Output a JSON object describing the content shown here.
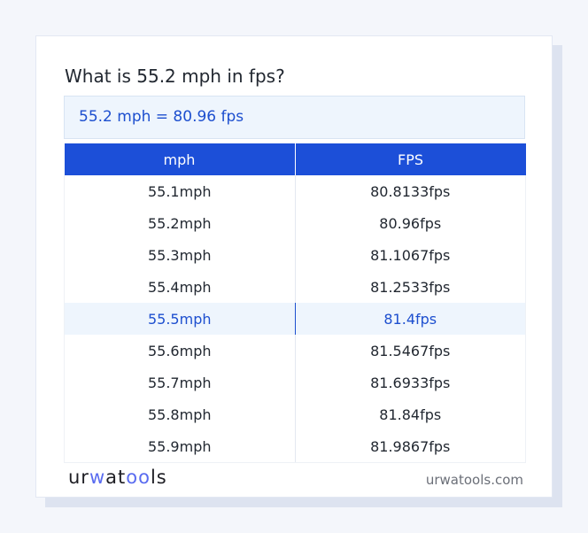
{
  "title": "What is 55.2 mph in fps?",
  "result": "55.2 mph = 80.96 fps",
  "table": {
    "headers": [
      "mph",
      "FPS"
    ],
    "rows": [
      [
        "55.1mph",
        "80.8133fps"
      ],
      [
        "55.2mph",
        "80.96fps"
      ],
      [
        "55.3mph",
        "81.1067fps"
      ],
      [
        "55.4mph",
        "81.2533fps"
      ],
      [
        "55.5mph",
        "81.4fps"
      ],
      [
        "55.6mph",
        "81.5467fps"
      ],
      [
        "55.7mph",
        "81.6933fps"
      ],
      [
        "55.8mph",
        "81.84fps"
      ],
      [
        "55.9mph",
        "81.9867fps"
      ]
    ],
    "highlighted_row": 4
  },
  "footer": {
    "logo_text": "urwatools",
    "site": "urwatools.com"
  },
  "colors": {
    "accent": "#1c4fd8",
    "highlight_bg": "#eef5fd"
  }
}
